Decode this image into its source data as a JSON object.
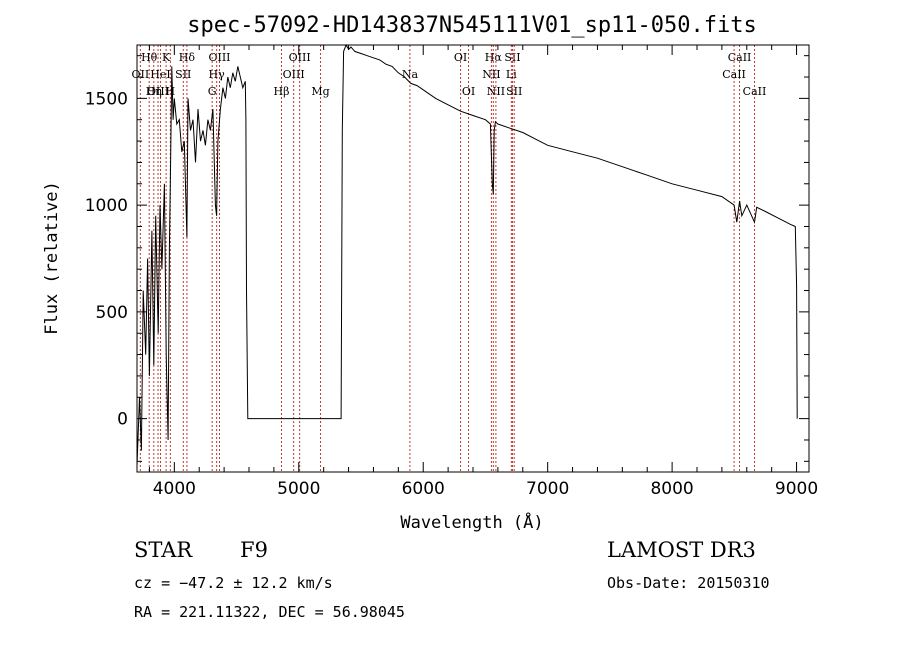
{
  "chart_data": {
    "type": "line",
    "title": "spec-57092-HD143837N545111V01_sp11-050.fits",
    "xlabel": "Wavelength (Å)",
    "ylabel": "Flux (relative)",
    "xlim": [
      3700,
      9100
    ],
    "ylim": [
      -250,
      1750
    ],
    "xticks": [
      4000,
      5000,
      6000,
      7000,
      8000,
      9000
    ],
    "yticks": [
      0,
      500,
      1000,
      1500
    ],
    "series": [
      {
        "name": "flux",
        "x": [
          3700,
          3720,
          3735,
          3750,
          3770,
          3785,
          3800,
          3820,
          3835,
          3850,
          3870,
          3885,
          3900,
          3920,
          3935,
          3950,
          3960,
          3970,
          3980,
          3990,
          4000,
          4020,
          4040,
          4060,
          4080,
          4101,
          4110,
          4130,
          4150,
          4170,
          4190,
          4210,
          4230,
          4250,
          4270,
          4290,
          4310,
          4330,
          4340,
          4350,
          4370,
          4390,
          4410,
          4430,
          4450,
          4470,
          4490,
          4510,
          4530,
          4550,
          4570,
          4575,
          4580,
          4590,
          4600,
          5340,
          5350,
          5360,
          5380,
          5400,
          5420,
          5450,
          5500,
          5550,
          5600,
          5650,
          5700,
          5750,
          5800,
          5850,
          5900,
          5950,
          6000,
          6100,
          6200,
          6300,
          6400,
          6500,
          6540,
          6555,
          6563,
          6570,
          6580,
          6600,
          6700,
          6800,
          6900,
          7000,
          7200,
          7400,
          7600,
          7800,
          8000,
          8200,
          8400,
          8498,
          8520,
          8542,
          8560,
          8600,
          8662,
          8680,
          8750,
          8850,
          8950,
          8990,
          9000,
          9005
        ],
        "values": [
          -220,
          100,
          -150,
          600,
          300,
          750,
          200,
          880,
          250,
          950,
          400,
          1000,
          700,
          1100,
          300,
          -100,
          800,
          1200,
          1650,
          1400,
          1500,
          1380,
          1400,
          1250,
          1300,
          850,
          1500,
          1350,
          1400,
          1200,
          1450,
          1300,
          1350,
          1280,
          1400,
          1350,
          1450,
          1000,
          950,
          1300,
          1450,
          1550,
          1500,
          1600,
          1550,
          1620,
          1580,
          1650,
          1600,
          1550,
          1580,
          1400,
          600,
          0,
          0,
          0,
          1350,
          1720,
          1750,
          1730,
          1740,
          1720,
          1710,
          1700,
          1690,
          1680,
          1660,
          1650,
          1620,
          1600,
          1570,
          1560,
          1540,
          1500,
          1470,
          1440,
          1420,
          1400,
          1380,
          1100,
          1050,
          1350,
          1390,
          1380,
          1360,
          1340,
          1310,
          1280,
          1250,
          1220,
          1180,
          1140,
          1100,
          1070,
          1040,
          1000,
          920,
          1020,
          950,
          1000,
          920,
          990,
          970,
          940,
          910,
          900,
          620,
          0
        ]
      }
    ],
    "spectral_lines": [
      {
        "label": "Hθ",
        "wavelength": 3798,
        "row": 1
      },
      {
        "label": "OII",
        "wavelength": 3727,
        "row": 2
      },
      {
        "label": "OIII",
        "wavelength": 3869,
        "row": 3
      },
      {
        "label": "HeI",
        "wavelength": 3889,
        "row": 2
      },
      {
        "label": "Hη",
        "wavelength": 3835,
        "row": 3
      },
      {
        "label": "K",
        "wavelength": 3934,
        "row": 1
      },
      {
        "label": "H",
        "wavelength": 3968,
        "row": 3
      },
      {
        "label": "Hδ",
        "wavelength": 4101,
        "row": 1
      },
      {
        "label": "SII",
        "wavelength": 4072,
        "row": 2
      },
      {
        "label": "OIII",
        "wavelength": 4363,
        "row": 1
      },
      {
        "label": "Hγ",
        "wavelength": 4340,
        "row": 2
      },
      {
        "label": "G",
        "wavelength": 4304,
        "row": 3
      },
      {
        "label": "Hβ",
        "wavelength": 4861,
        "row": 3
      },
      {
        "label": "OIII",
        "wavelength": 4959,
        "row": 2
      },
      {
        "label": "OIII",
        "wavelength": 5007,
        "row": 1
      },
      {
        "label": "Mg",
        "wavelength": 5175,
        "row": 3
      },
      {
        "label": "Na",
        "wavelength": 5893,
        "row": 2
      },
      {
        "label": "OI",
        "wavelength": 6300,
        "row": 1
      },
      {
        "label": "OI",
        "wavelength": 6364,
        "row": 3
      },
      {
        "label": "Hα",
        "wavelength": 6563,
        "row": 1
      },
      {
        "label": "NII",
        "wavelength": 6548,
        "row": 2
      },
      {
        "label": "NII",
        "wavelength": 6584,
        "row": 3
      },
      {
        "label": "SII",
        "wavelength": 6717,
        "row": 1
      },
      {
        "label": "Li",
        "wavelength": 6708,
        "row": 2
      },
      {
        "label": "SII",
        "wavelength": 6731,
        "row": 3
      },
      {
        "label": "CaII",
        "wavelength": 8542,
        "row": 1
      },
      {
        "label": "CaII",
        "wavelength": 8498,
        "row": 2
      },
      {
        "label": "CaII",
        "wavelength": 8662,
        "row": 3
      }
    ]
  },
  "info": {
    "object_class": "STAR",
    "subclass": "F9",
    "survey": "LAMOST DR3",
    "cz": "cz = −47.2 ± 12.2 km/s",
    "obs_date": "Obs-Date: 20150310",
    "coords": "RA = 221.11322, DEC =  56.98045"
  },
  "colors": {
    "line_marker": "#c0392b",
    "spectrum": "#000000"
  }
}
